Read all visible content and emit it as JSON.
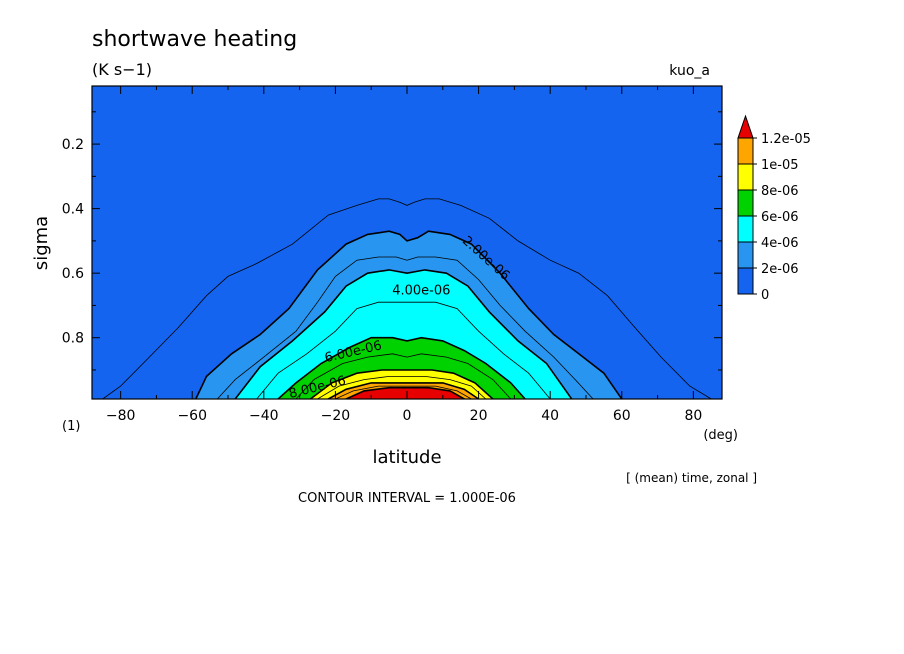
{
  "chart_data": {
    "type": "heatmap",
    "title": "shortwave heating",
    "units": "(K s−1)",
    "experiment": "kuo_a",
    "xlabel": "latitude",
    "ylabel": "sigma",
    "x_units": "(deg)",
    "y_index": "(1)",
    "average_note": "[ (mean) time, zonal ]",
    "contour_interval_text": "CONTOUR INTERVAL = 1.000E-06",
    "x_range": [
      -88,
      88
    ],
    "y_range": [
      0.02,
      0.99
    ],
    "y_inverted": true,
    "x_ticks": [
      {
        "v": -80,
        "label": "−80"
      },
      {
        "v": -60,
        "label": "−60"
      },
      {
        "v": -40,
        "label": "−40"
      },
      {
        "v": -20,
        "label": "−20"
      },
      {
        "v": 0,
        "label": "0"
      },
      {
        "v": 20,
        "label": "20"
      },
      {
        "v": 40,
        "label": "40"
      },
      {
        "v": 60,
        "label": "60"
      },
      {
        "v": 80,
        "label": "80"
      }
    ],
    "y_ticks": [
      {
        "v": 0.2,
        "label": "0.2"
      },
      {
        "v": 0.4,
        "label": "0.4"
      },
      {
        "v": 0.6,
        "label": "0.6"
      },
      {
        "v": 0.8,
        "label": "0.8"
      }
    ],
    "colorbar": {
      "levels": [
        {
          "label": "0",
          "color": "#1464f0"
        },
        {
          "label": "2e-06",
          "color": "#2896f0"
        },
        {
          "label": "4e-06",
          "color": "#00ffff"
        },
        {
          "label": "6e-06",
          "color": "#00d200"
        },
        {
          "label": "8e-06",
          "color": "#ffff00"
        },
        {
          "label": "1e-05",
          "color": "#ffa500"
        },
        {
          "label": "1.2e-05",
          "color": "#e60000"
        }
      ]
    },
    "fill_regions": [
      {
        "level": 2e-06,
        "color": "#2896f0",
        "boundary": [
          [
            -59,
            0.99
          ],
          [
            -56,
            0.92
          ],
          [
            -49,
            0.85
          ],
          [
            -41,
            0.79
          ],
          [
            -33,
            0.71
          ],
          [
            -25,
            0.59
          ],
          [
            -17,
            0.51
          ],
          [
            -11,
            0.48
          ],
          [
            -5,
            0.47
          ],
          [
            -2,
            0.48
          ],
          [
            0,
            0.5
          ],
          [
            3,
            0.49
          ],
          [
            6,
            0.47
          ],
          [
            12,
            0.48
          ],
          [
            18,
            0.51
          ],
          [
            26,
            0.6
          ],
          [
            34,
            0.71
          ],
          [
            41,
            0.79
          ],
          [
            48,
            0.85
          ],
          [
            55,
            0.91
          ],
          [
            60,
            0.99
          ]
        ]
      },
      {
        "level": 4e-06,
        "color": "#00ffff",
        "boundary": [
          [
            -48,
            0.99
          ],
          [
            -41,
            0.89
          ],
          [
            -32,
            0.81
          ],
          [
            -23,
            0.72
          ],
          [
            -17,
            0.64
          ],
          [
            -11,
            0.6
          ],
          [
            -5,
            0.59
          ],
          [
            0,
            0.6
          ],
          [
            5,
            0.59
          ],
          [
            11,
            0.6
          ],
          [
            17,
            0.64
          ],
          [
            23,
            0.72
          ],
          [
            31,
            0.81
          ],
          [
            39,
            0.88
          ],
          [
            46,
            0.99
          ]
        ]
      },
      {
        "level": 6e-06,
        "color": "#00d200",
        "boundary": [
          [
            -36,
            0.99
          ],
          [
            -31,
            0.94
          ],
          [
            -24,
            0.88
          ],
          [
            -16,
            0.83
          ],
          [
            -10,
            0.8
          ],
          [
            -4,
            0.8
          ],
          [
            0,
            0.81
          ],
          [
            4,
            0.8
          ],
          [
            10,
            0.81
          ],
          [
            16,
            0.84
          ],
          [
            22,
            0.88
          ],
          [
            29,
            0.94
          ],
          [
            33,
            0.99
          ]
        ]
      },
      {
        "level": 8e-06,
        "color": "#ffff00",
        "boundary": [
          [
            -27,
            0.99
          ],
          [
            -21,
            0.94
          ],
          [
            -14,
            0.91
          ],
          [
            -7,
            0.9
          ],
          [
            0,
            0.9
          ],
          [
            7,
            0.9
          ],
          [
            13,
            0.91
          ],
          [
            19,
            0.94
          ],
          [
            24,
            0.99
          ]
        ]
      },
      {
        "level": 1e-05,
        "color": "#ffa500",
        "boundary": [
          [
            -22,
            0.99
          ],
          [
            -17,
            0.96
          ],
          [
            -10,
            0.94
          ],
          [
            -3,
            0.94
          ],
          [
            3,
            0.94
          ],
          [
            10,
            0.94
          ],
          [
            16,
            0.96
          ],
          [
            20,
            0.99
          ]
        ]
      },
      {
        "level": 1.2e-05,
        "color": "#e60000",
        "boundary": [
          [
            -17,
            0.99
          ],
          [
            -12,
            0.965
          ],
          [
            -5,
            0.955
          ],
          [
            0,
            0.955
          ],
          [
            6,
            0.955
          ],
          [
            12,
            0.965
          ],
          [
            16,
            0.99
          ]
        ]
      }
    ],
    "contour_lines": [
      {
        "level": 1e-06,
        "bold": false,
        "points": [
          [
            -85,
            0.99
          ],
          [
            -80,
            0.95
          ],
          [
            -72,
            0.86
          ],
          [
            -64,
            0.77
          ],
          [
            -56,
            0.67
          ],
          [
            -50,
            0.61
          ],
          [
            -42,
            0.57
          ],
          [
            -32,
            0.51
          ],
          [
            -22,
            0.42
          ],
          [
            -14,
            0.39
          ],
          [
            -8,
            0.37
          ],
          [
            -5,
            0.37
          ],
          [
            -2,
            0.38
          ],
          [
            0,
            0.39
          ],
          [
            2,
            0.38
          ],
          [
            5,
            0.37
          ],
          [
            9,
            0.37
          ],
          [
            15,
            0.39
          ],
          [
            23,
            0.43
          ],
          [
            31,
            0.5
          ],
          [
            40,
            0.56
          ],
          [
            48,
            0.6
          ],
          [
            56,
            0.67
          ],
          [
            63,
            0.76
          ],
          [
            71,
            0.86
          ],
          [
            79,
            0.95
          ],
          [
            85,
            0.99
          ]
        ]
      },
      {
        "level": 3e-06,
        "bold": false,
        "points": [
          [
            -53,
            0.99
          ],
          [
            -48,
            0.93
          ],
          [
            -40,
            0.86
          ],
          [
            -31,
            0.78
          ],
          [
            -25,
            0.69
          ],
          [
            -20,
            0.61
          ],
          [
            -14,
            0.56
          ],
          [
            -8,
            0.55
          ],
          [
            -3,
            0.55
          ],
          [
            0,
            0.56
          ],
          [
            3,
            0.55
          ],
          [
            8,
            0.55
          ],
          [
            14,
            0.56
          ],
          [
            20,
            0.62
          ],
          [
            26,
            0.7
          ],
          [
            33,
            0.78
          ],
          [
            41,
            0.86
          ],
          [
            47,
            0.93
          ],
          [
            52,
            0.99
          ]
        ]
      },
      {
        "level": 5e-06,
        "bold": false,
        "points": [
          [
            -42,
            0.99
          ],
          [
            -36,
            0.91
          ],
          [
            -28,
            0.85
          ],
          [
            -20,
            0.78
          ],
          [
            -14,
            0.71
          ],
          [
            -8,
            0.69
          ],
          [
            0,
            0.69
          ],
          [
            8,
            0.69
          ],
          [
            14,
            0.71
          ],
          [
            20,
            0.78
          ],
          [
            27,
            0.85
          ],
          [
            34,
            0.91
          ],
          [
            40,
            0.99
          ]
        ]
      },
      {
        "level": 7e-06,
        "bold": false,
        "points": [
          [
            -31,
            0.99
          ],
          [
            -26,
            0.93
          ],
          [
            -18,
            0.88
          ],
          [
            -11,
            0.86
          ],
          [
            -4,
            0.85
          ],
          [
            0,
            0.86
          ],
          [
            4,
            0.85
          ],
          [
            11,
            0.86
          ],
          [
            17,
            0.88
          ],
          [
            24,
            0.93
          ],
          [
            29,
            0.99
          ]
        ]
      },
      {
        "level": 9e-06,
        "bold": false,
        "points": [
          [
            -25,
            0.99
          ],
          [
            -19,
            0.95
          ],
          [
            -12,
            0.93
          ],
          [
            -5,
            0.92
          ],
          [
            0,
            0.92
          ],
          [
            5,
            0.92
          ],
          [
            12,
            0.93
          ],
          [
            18,
            0.95
          ],
          [
            22,
            0.99
          ]
        ]
      },
      {
        "level": 1.1e-05,
        "bold": false,
        "points": [
          [
            -20,
            0.99
          ],
          [
            -15,
            0.965
          ],
          [
            -8,
            0.95
          ],
          [
            0,
            0.95
          ],
          [
            8,
            0.95
          ],
          [
            14,
            0.965
          ],
          [
            18,
            0.99
          ]
        ]
      }
    ],
    "contour_labels": [
      {
        "text": "2.00e-06",
        "x": 22,
        "y": 0.555,
        "angle": 42
      },
      {
        "text": "4.00e-06",
        "x": 4,
        "y": 0.655,
        "angle": 0
      },
      {
        "text": "6.00e-06",
        "x": -15,
        "y": 0.845,
        "angle": -13
      },
      {
        "text": "8.00e-06",
        "x": -25,
        "y": 0.955,
        "angle": -14
      }
    ]
  }
}
